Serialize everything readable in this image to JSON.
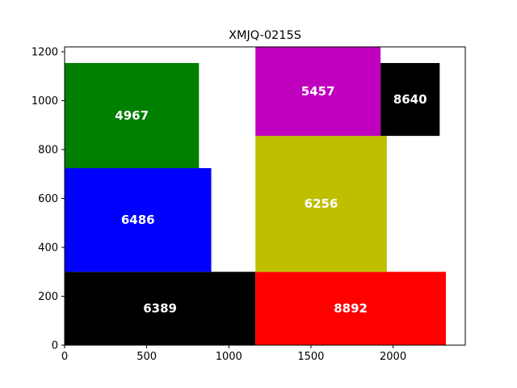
{
  "chart_data": {
    "type": "treemap",
    "title": "XMJQ-0215S",
    "xlabel": "",
    "ylabel": "",
    "xlim": [
      0,
      2440
    ],
    "ylim": [
      0,
      1220
    ],
    "xticks": [
      0,
      500,
      1000,
      1500,
      2000
    ],
    "yticks": [
      0,
      200,
      400,
      600,
      800,
      1000,
      1200
    ],
    "grid": false,
    "rectangles": [
      {
        "label": "6389",
        "x": 0,
        "y": 0,
        "width": 1162,
        "height": 300,
        "color": "#000000"
      },
      {
        "label": "8892",
        "x": 1162,
        "y": 0,
        "width": 1160,
        "height": 300,
        "color": "#ff0000"
      },
      {
        "label": "6486",
        "x": 0,
        "y": 300,
        "width": 893,
        "height": 424,
        "color": "#0000ff"
      },
      {
        "label": "4967",
        "x": 0,
        "y": 724,
        "width": 818,
        "height": 430,
        "color": "#008000"
      },
      {
        "label": "6256",
        "x": 1162,
        "y": 300,
        "width": 800,
        "height": 556,
        "color": "#bfbf00"
      },
      {
        "label": "5457",
        "x": 1162,
        "y": 856,
        "width": 762,
        "height": 364,
        "color": "#bf00bf"
      },
      {
        "label": "8640",
        "x": 1924,
        "y": 856,
        "width": 360,
        "height": 298,
        "color": "#000000"
      }
    ]
  }
}
